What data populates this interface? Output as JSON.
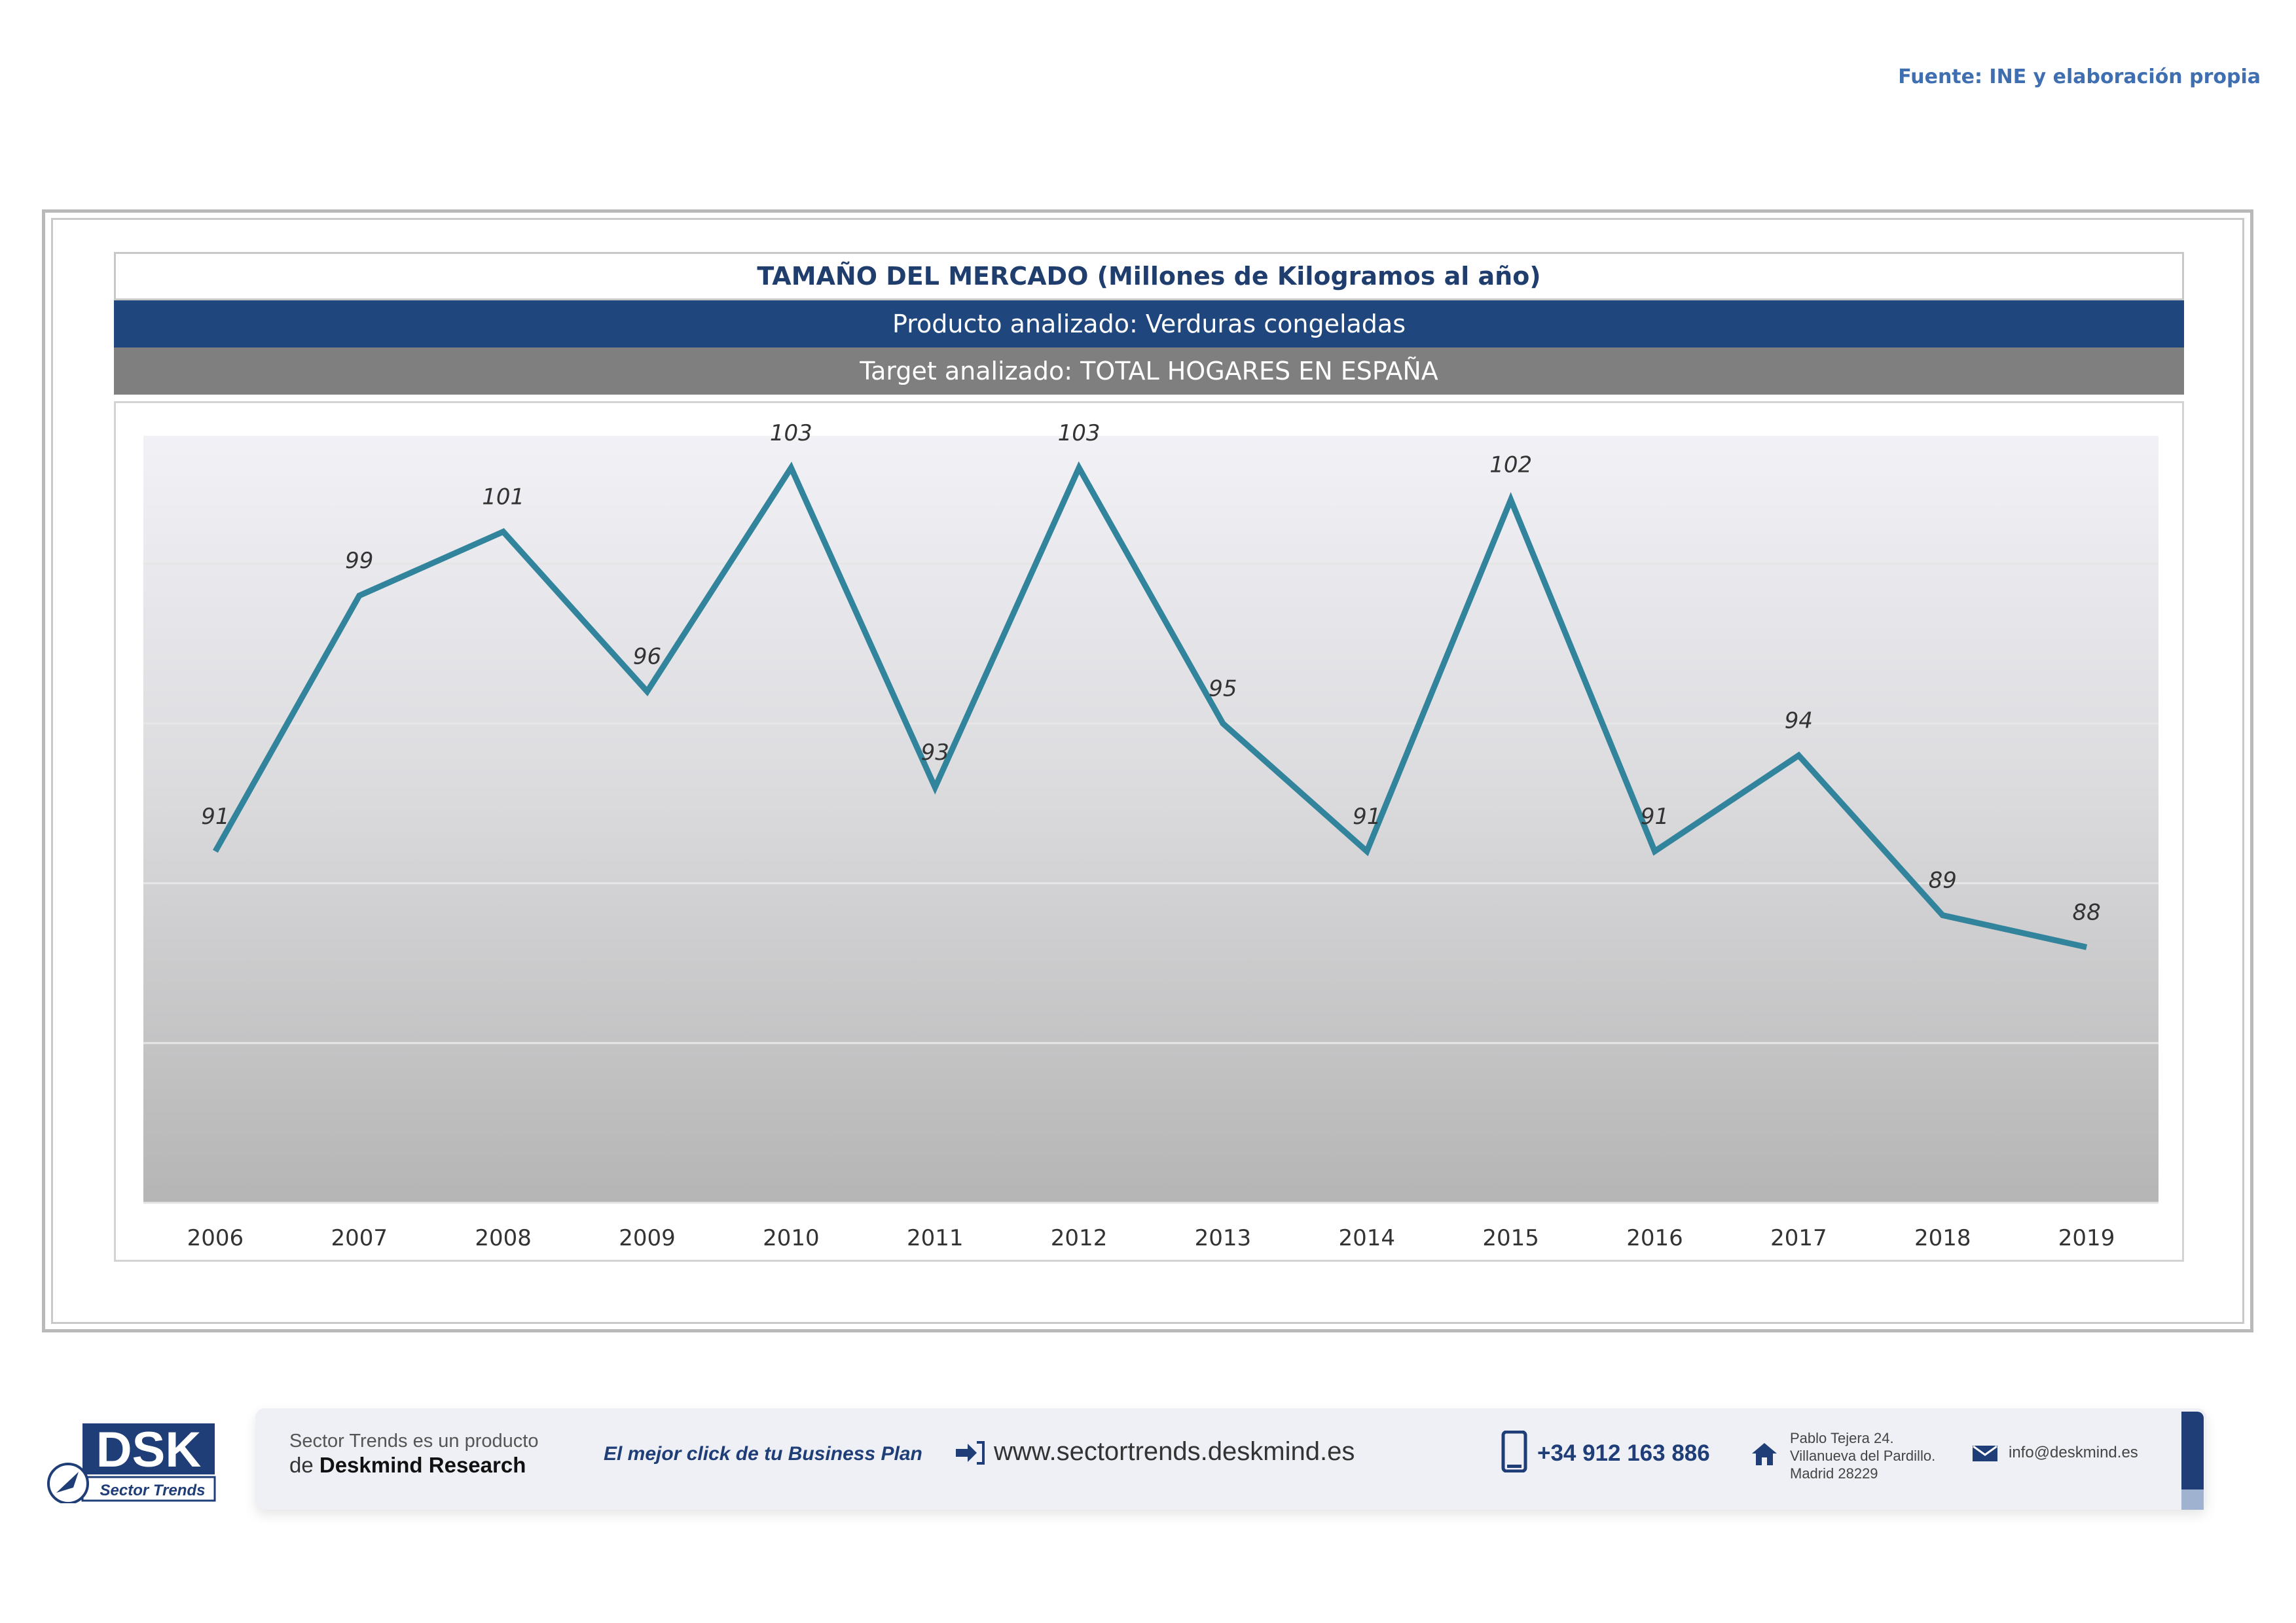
{
  "source": "Fuente: INE y elaboración propia",
  "header": {
    "title": "TAMAÑO DEL MERCADO (Millones de Kilogramos al año)",
    "product": "Producto analizado: Verduras congeladas",
    "target": "Target analizado: TOTAL HOGARES EN ESPAÑA"
  },
  "chart_data": {
    "type": "line",
    "title": "TAMAÑO DEL MERCADO (Millones de Kilogramos al año)",
    "categories": [
      "2006",
      "2007",
      "2008",
      "2009",
      "2010",
      "2011",
      "2012",
      "2013",
      "2014",
      "2015",
      "2016",
      "2017",
      "2018",
      "2019"
    ],
    "series": [
      {
        "values": [
          91,
          99,
          101,
          96,
          103,
          93,
          103,
          95,
          91,
          102,
          91,
          94,
          89,
          88
        ]
      }
    ],
    "data_labels": [
      "91",
      "99",
      "101",
      "96",
      "103",
      "93",
      "103",
      "95",
      "91",
      "102",
      "91",
      "94",
      "89",
      "88"
    ],
    "ylim": [
      80,
      104
    ],
    "line_color": "#31849b",
    "background": "gradient grey",
    "legend": "none"
  },
  "footer": {
    "logo_text": "DSK",
    "logo_subtitle": "Sector Trends",
    "product_line1": "Sector Trends es un producto",
    "product_line2_prefix": "de ",
    "product_line2_brand": "Deskmind Research",
    "slogan": "El mejor click de tu Business Plan",
    "website": "www.sectortrends.deskmind.es",
    "phone": "+34 912 163 886",
    "address_line1": "Pablo Tejera 24.",
    "address_line2": "Villanueva del Pardillo.",
    "address_line3": "Madrid 28229",
    "email": "info@deskmind.es",
    "brand_color": "#1f3e78"
  }
}
